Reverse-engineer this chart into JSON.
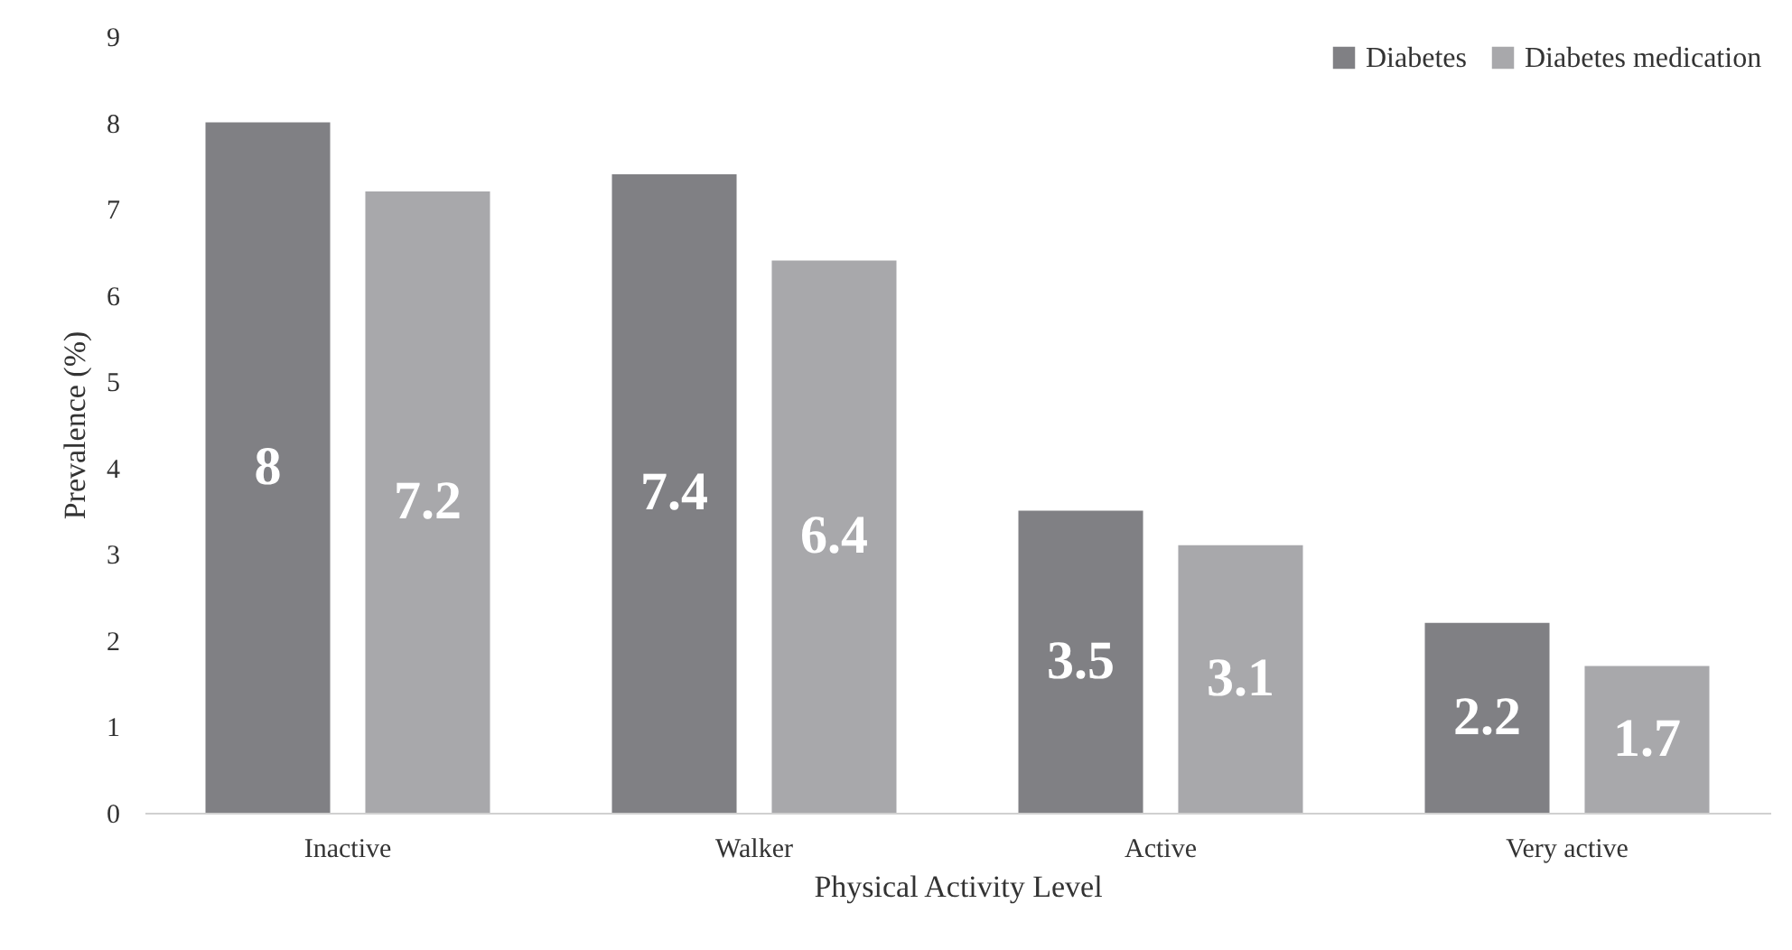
{
  "chart_data": {
    "type": "bar",
    "xlabel": "Physical Activity Level",
    "ylabel": "Prevalence (%)",
    "categories": [
      "Inactive",
      "Walker",
      "Active",
      "Very active"
    ],
    "series": [
      {
        "name": "Diabetes",
        "color": "#808084",
        "values": [
          8,
          7.4,
          3.5,
          2.2
        ]
      },
      {
        "name": "Diabetes medication",
        "color": "#a8a8ab",
        "values": [
          7.2,
          6.4,
          3.1,
          1.7
        ]
      }
    ],
    "ylim": [
      0,
      9
    ],
    "yticks": [
      0,
      1,
      2,
      3,
      4,
      5,
      6,
      7,
      8,
      9
    ],
    "grid": false,
    "legend": "top right",
    "data_labels": true
  }
}
